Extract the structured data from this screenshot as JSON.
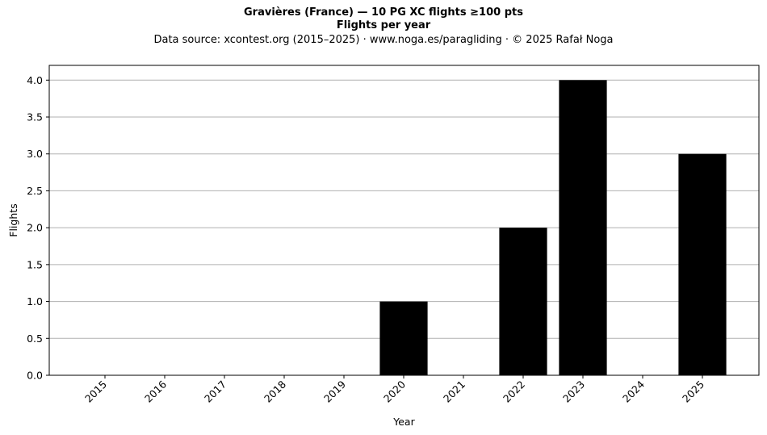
{
  "chart_data": {
    "type": "bar",
    "title": "Gravières (France)  —  10 PG XC flights ≥100 pts",
    "subtitle": "Flights per year",
    "source": "Data source: xcontest.org (2015–2025)  ·  www.noga.es/paragliding  ·  © 2025 Rafał Noga",
    "xlabel": "Year",
    "ylabel": "Flights",
    "categories": [
      "2015",
      "2016",
      "2017",
      "2018",
      "2019",
      "2020",
      "2021",
      "2022",
      "2023",
      "2024",
      "2025"
    ],
    "values": [
      0,
      0,
      0,
      0,
      0,
      1,
      0,
      2,
      4,
      0,
      3
    ],
    "ylim": [
      0,
      4.2
    ],
    "yticks": [
      "0.0",
      "0.5",
      "1.0",
      "1.5",
      "2.0",
      "2.5",
      "3.0",
      "3.5",
      "4.0"
    ],
    "grid": "horizontal",
    "bar_color": "#000000",
    "grid_color": "#b0b0b0"
  }
}
